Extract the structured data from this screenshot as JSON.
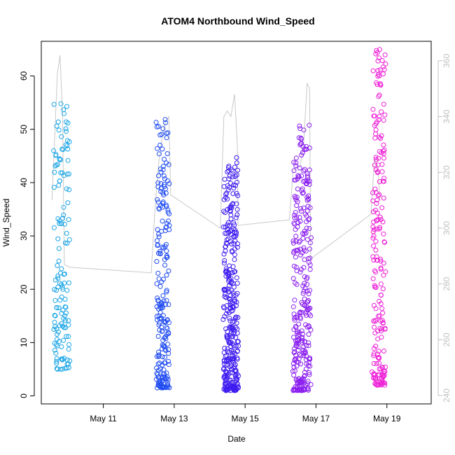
{
  "chart_data": {
    "type": "scatter",
    "title": "ATOM4 Northbound Wind_Speed",
    "xlabel": "Date",
    "ylabel": "Wind_Speed",
    "x_ticks": [
      "May 11",
      "May 13",
      "May 15",
      "May 17",
      "May 19"
    ],
    "x_tick_days": [
      11,
      13,
      15,
      17,
      19
    ],
    "xlim_days": [
      9.25,
      20.25
    ],
    "ylim": [
      -1.5,
      66.5
    ],
    "y_ticks": [
      0,
      10,
      20,
      30,
      40,
      50,
      60
    ],
    "y2_ticks": [
      240,
      260,
      280,
      300,
      320,
      340,
      360
    ],
    "y2lim": [
      237,
      367
    ],
    "grid": false,
    "series": [
      {
        "color": "#1aa5e6",
        "x_range_days": [
          9.6,
          10.05
        ],
        "values_range": [
          5,
          55
        ],
        "y2_value": 286,
        "point_count": 140
      },
      {
        "color": "#1f4bf2",
        "x_range_days": [
          12.5,
          12.85
        ],
        "values_range": [
          1.5,
          52
        ],
        "y2_value": 284,
        "point_count": 210
      },
      {
        "color": "#3f1cf0",
        "x_range_days": [
          14.4,
          14.8
        ],
        "values_range": [
          1,
          45
        ],
        "y2_value": 301,
        "point_count": 330
      },
      {
        "color": "#8b1ff0",
        "x_range_days": [
          16.35,
          16.85
        ],
        "values_range": [
          1,
          51
        ],
        "y2_value": 305,
        "point_count": 300
      },
      {
        "color": "#ee1fd6",
        "x_range_days": [
          18.6,
          18.95
        ],
        "values_range": [
          2,
          65
        ],
        "y2_value": 310,
        "point_count": 200
      }
    ],
    "direction_line": {
      "color": "#c8c8c8",
      "points": [
        [
          9.55,
          310
        ],
        [
          9.62,
          330
        ],
        [
          9.7,
          355
        ],
        [
          9.78,
          362
        ],
        [
          9.85,
          340
        ],
        [
          9.9,
          287
        ],
        [
          10.05,
          286
        ],
        [
          12.35,
          284
        ],
        [
          12.45,
          305
        ],
        [
          12.55,
          322
        ],
        [
          12.65,
          332
        ],
        [
          12.75,
          338
        ],
        [
          12.85,
          340
        ],
        [
          12.9,
          312
        ],
        [
          14.3,
          300
        ],
        [
          14.4,
          340
        ],
        [
          14.5,
          342
        ],
        [
          14.6,
          340
        ],
        [
          14.7,
          348
        ],
        [
          14.78,
          330
        ],
        [
          14.8,
          301
        ],
        [
          16.25,
          303
        ],
        [
          16.35,
          320
        ],
        [
          16.45,
          322
        ],
        [
          16.55,
          322
        ],
        [
          16.65,
          330
        ],
        [
          16.75,
          352
        ],
        [
          16.82,
          350
        ],
        [
          16.85,
          289
        ],
        [
          18.55,
          305
        ],
        [
          18.65,
          325
        ],
        [
          18.75,
          322
        ],
        [
          18.8,
          310
        ]
      ]
    }
  }
}
